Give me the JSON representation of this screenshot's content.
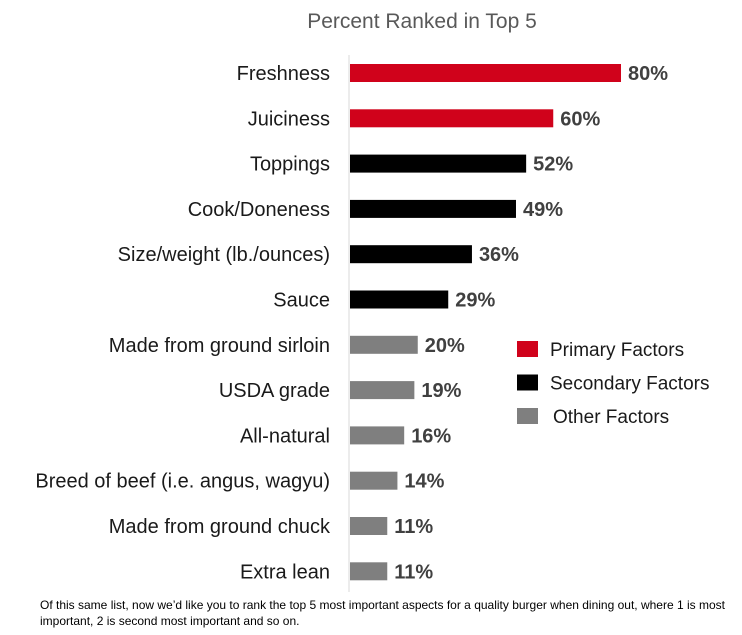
{
  "chart_data": {
    "type": "bar",
    "orientation": "horizontal",
    "title": "Percent Ranked in Top 5",
    "categories": [
      "Freshness",
      "Juiciness",
      "Toppings",
      "Cook/Doneness",
      "Size/weight (lb./ounces)",
      "Sauce",
      "Made from ground sirloin",
      "USDA grade",
      "All-natural",
      "Breed of beef (i.e. angus, wagyu)",
      "Made from ground chuck",
      "Extra lean"
    ],
    "values": [
      80,
      60,
      52,
      49,
      36,
      29,
      20,
      19,
      16,
      14,
      11,
      11
    ],
    "value_labels": [
      "80%",
      "60%",
      "52%",
      "49%",
      "36%",
      "29%",
      "20%",
      "19%",
      "16%",
      "14%",
      "11%",
      "11%"
    ],
    "groups": [
      "primary",
      "primary",
      "secondary",
      "secondary",
      "secondary",
      "secondary",
      "other",
      "other",
      "other",
      "other",
      "other",
      "other"
    ],
    "legend": [
      {
        "key": "primary",
        "label": "Primary Factors",
        "color": "#d0021b"
      },
      {
        "key": "secondary",
        "label": "Secondary Factors",
        "color": "#000000"
      },
      {
        "key": "other",
        "label": "Other Factors",
        "color": "#7f7f7f"
      }
    ],
    "legend_position": "right",
    "xlim": [
      0,
      100
    ],
    "grid": false,
    "xlabel": "",
    "ylabel": ""
  },
  "footnote": "Of this same list, now we’d like you to rank the top 5 most important aspects for a quality burger when dining out, where 1 is most important, 2 is second most important and so on."
}
